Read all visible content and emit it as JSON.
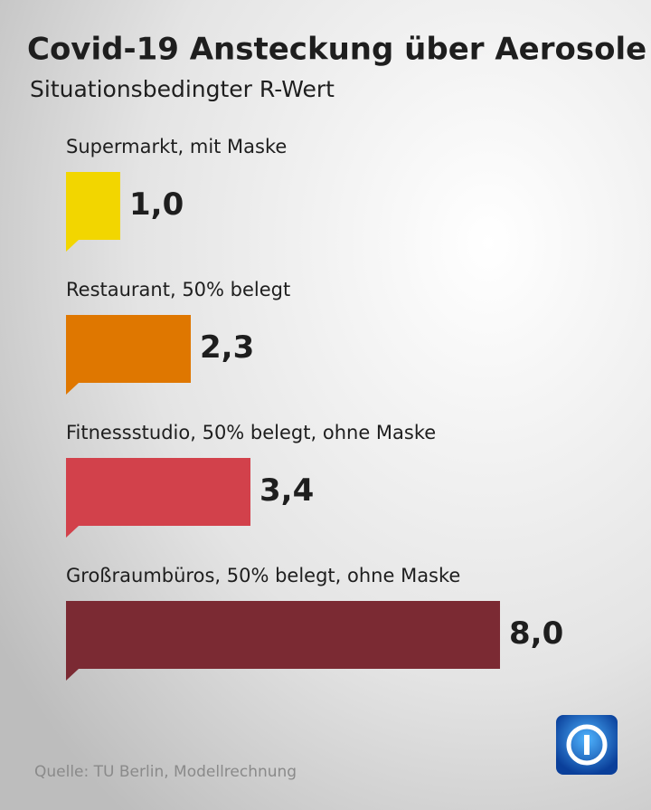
{
  "chart_data": {
    "type": "hbar",
    "title": "Covid-19 Ansteckung über Aerosole",
    "subtitle": "Situationsbedingter R-Wert",
    "categories": [
      "Supermarkt, mit Maske",
      "Restaurant, 50% belegt",
      "Fitnessstudio, 50% belegt, ohne Maske",
      "Großraumbüros, 50% belegt, ohne Maske"
    ],
    "values": [
      1.0,
      2.3,
      3.4,
      8.0
    ],
    "value_labels": [
      "1,0",
      "2,3",
      "3,4",
      "8,0"
    ],
    "colors": [
      "#f2d600",
      "#df7700",
      "#d2414b",
      "#7b2a33"
    ],
    "source": "Quelle: TU Berlin, Modellrechnung"
  }
}
